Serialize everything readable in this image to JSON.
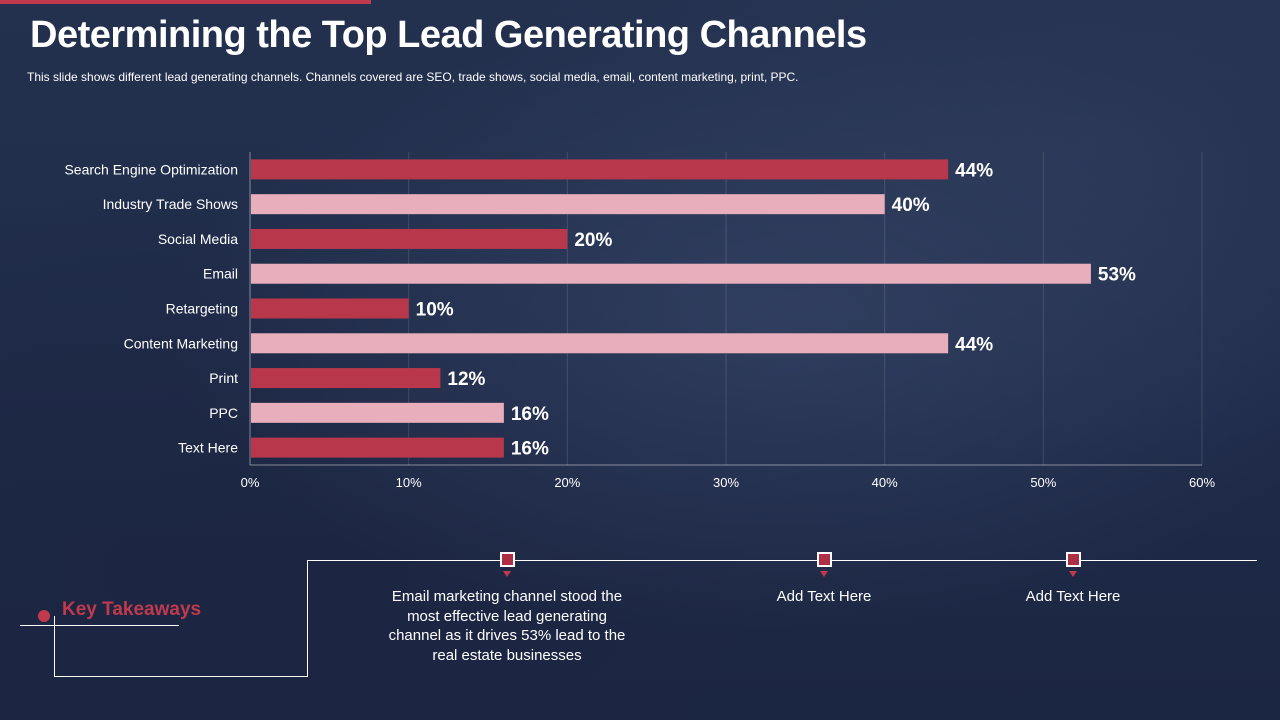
{
  "title": "Determining the Top Lead Generating Channels",
  "subtitle": "This slide shows different  lead generating channels. Channels covered  are SEO, trade shows, social media, email, content marketing, print, PPC.",
  "colors": {
    "bar_dark": "#b8374b",
    "bar_light": "#e8aebb",
    "accent": "#c0394d",
    "background": "#1f2c4c"
  },
  "chart_data": {
    "type": "bar",
    "orientation": "horizontal",
    "categories": [
      "Search Engine Optimization",
      "Industry Trade Shows",
      "Social Media",
      "Email",
      "Retargeting",
      "Content Marketing",
      "Print",
      "PPC",
      "Text Here"
    ],
    "values": [
      44,
      40,
      20,
      53,
      10,
      44,
      12,
      16,
      16
    ],
    "value_labels": [
      "44%",
      "40%",
      "20%",
      "53%",
      "10%",
      "44%",
      "12%",
      "16%",
      "16%"
    ],
    "xlim": [
      0,
      60
    ],
    "xticks": [
      "0%",
      "10%",
      "20%",
      "30%",
      "40%",
      "50%",
      "60%"
    ],
    "xlabel": "",
    "ylabel": "",
    "gridlines": true
  },
  "takeaways": {
    "heading": "Key Takeaways",
    "items": [
      "Email marketing channel stood the most effective lead generating channel as it drives 53% lead to the real estate businesses",
      "Add Text Here",
      "Add Text Here"
    ]
  }
}
